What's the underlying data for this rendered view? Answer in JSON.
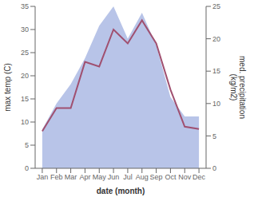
{
  "chart_data": {
    "type": "line",
    "xlabel": "date (month)",
    "ylabel": "max temp (C)",
    "y2label": "med. precipitation\n(kg/m2)",
    "categories": [
      "Jan",
      "Feb",
      "Mar",
      "Apr",
      "May",
      "Jun",
      "Jul",
      "Aug",
      "Sep",
      "Oct",
      "Nov",
      "Dec"
    ],
    "series": [
      {
        "type": "area",
        "axis": "y2",
        "color": "#b8c4e8",
        "values": [
          6.0,
          10.0,
          13.0,
          17.0,
          22.0,
          25.0,
          20.0,
          24.0,
          19.0,
          11.0,
          8.0,
          8.0
        ]
      },
      {
        "type": "line",
        "axis": "y",
        "color": "#a05070",
        "values": [
          8.0,
          13.0,
          13.0,
          23.0,
          22.0,
          30.0,
          27.0,
          32.0,
          27.0,
          17.0,
          9.0,
          8.5
        ]
      }
    ],
    "ylim": [
      0,
      35
    ],
    "yticks": [
      0,
      5,
      10,
      15,
      20,
      25,
      30,
      35
    ],
    "y2lim": [
      0,
      25
    ],
    "y2ticks": [
      0,
      5,
      10,
      15,
      20,
      25
    ],
    "grid": false
  }
}
